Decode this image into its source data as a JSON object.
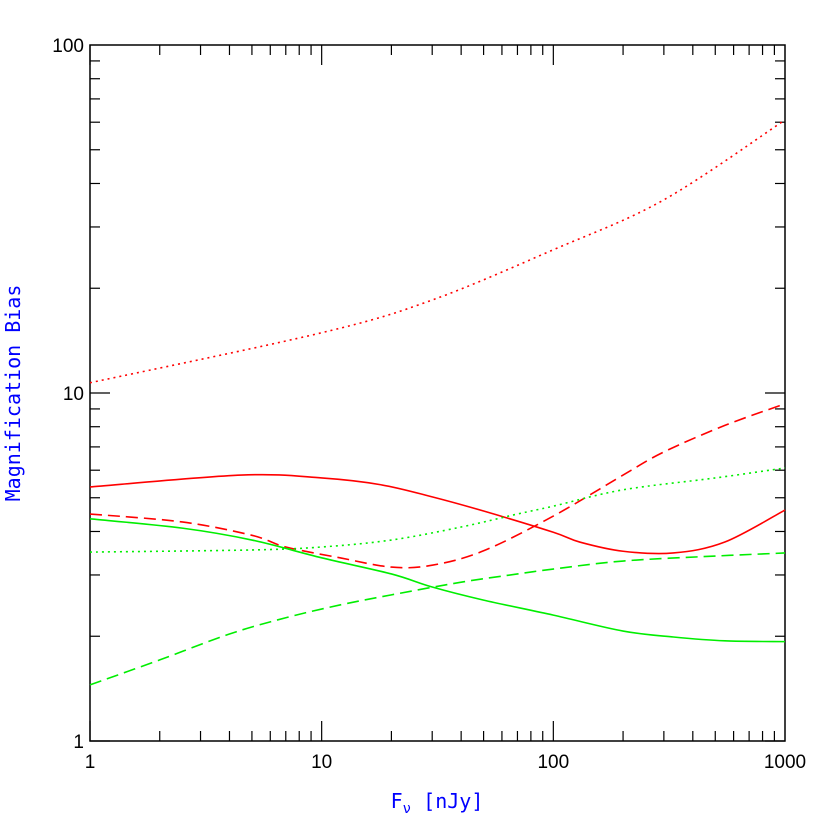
{
  "chart_data": {
    "type": "line",
    "xscale": "log",
    "yscale": "log",
    "xlim": [
      1,
      1000
    ],
    "ylim": [
      1,
      100
    ],
    "grid": false,
    "xticks": [
      "1",
      "10",
      "100",
      "1000"
    ],
    "yticks": [
      "1",
      "10",
      "100"
    ],
    "xlabel": {
      "main": "F",
      "sub": "ν",
      "unit": " [nJy]"
    },
    "ylabel": "Magnification Bias",
    "series": [
      {
        "color": "#ff0000",
        "style": "dotted",
        "x": [
          1,
          10,
          30,
          100,
          300,
          1000
        ],
        "y": [
          10.7,
          14.9,
          18.5,
          25.8,
          35.9,
          60.9
        ]
      },
      {
        "color": "#ff0000",
        "style": "solid",
        "x": [
          1,
          4.5,
          10,
          18,
          30,
          50,
          100,
          130,
          200,
          330,
          550,
          1000
        ],
        "y": [
          5.37,
          5.81,
          5.7,
          5.45,
          5.03,
          4.58,
          3.98,
          3.73,
          3.51,
          3.47,
          3.73,
          4.61
        ]
      },
      {
        "color": "#ff0000",
        "style": "dashed",
        "x": [
          1,
          2.5,
          5,
          7,
          12,
          20,
          30,
          50,
          100,
          200,
          300,
          550,
          1000
        ],
        "y": [
          4.49,
          4.26,
          3.9,
          3.61,
          3.36,
          3.16,
          3.2,
          3.52,
          4.43,
          5.81,
          6.77,
          8.07,
          9.31
        ]
      },
      {
        "color": "#00ee00",
        "style": "solid",
        "x": [
          1,
          2.5,
          5,
          10,
          20,
          30,
          50,
          100,
          200,
          330,
          550,
          1000
        ],
        "y": [
          4.35,
          4.09,
          3.78,
          3.36,
          3.02,
          2.77,
          2.54,
          2.3,
          2.07,
          1.99,
          1.94,
          1.93
        ]
      },
      {
        "color": "#00ee00",
        "style": "dashed",
        "x": [
          1,
          2,
          4,
          7,
          12,
          20,
          40,
          70,
          100,
          200,
          500,
          1000
        ],
        "y": [
          1.45,
          1.71,
          2.03,
          2.26,
          2.46,
          2.63,
          2.86,
          3.02,
          3.12,
          3.29,
          3.4,
          3.47
        ]
      },
      {
        "color": "#00ee00",
        "style": "dotted",
        "x": [
          1,
          5,
          10,
          20,
          40,
          70,
          100,
          200,
          500,
          1000
        ],
        "y": [
          3.49,
          3.54,
          3.61,
          3.78,
          4.12,
          4.49,
          4.73,
          5.27,
          5.7,
          6.09
        ]
      }
    ]
  }
}
